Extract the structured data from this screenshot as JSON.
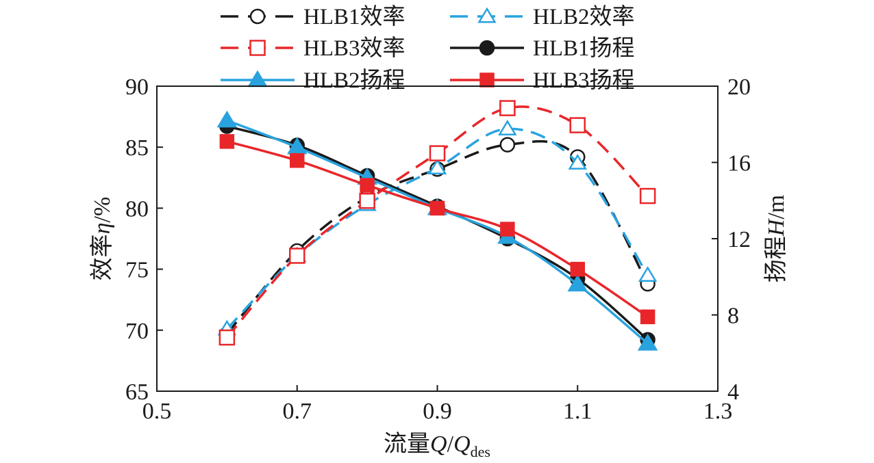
{
  "chart_data": {
    "type": "line",
    "x_label": {
      "prefix": "流量",
      "var_num": "Q",
      "slash": "/",
      "var_den": "Q",
      "subscript": "des"
    },
    "y_left_label": {
      "prefix": "效率",
      "var": "η",
      "suffix": "/%"
    },
    "y_right_label": {
      "prefix": "扬程",
      "var": "H",
      "suffix": "/m"
    },
    "xlim": [
      0.5,
      1.3
    ],
    "y_left_lim": [
      65,
      90
    ],
    "y_right_lim": [
      4,
      20
    ],
    "x_ticks": [
      "0.5",
      "0.7",
      "0.9",
      "1.1",
      "1.3"
    ],
    "y_left_ticks": [
      "65",
      "70",
      "75",
      "80",
      "85",
      "90"
    ],
    "y_right_ticks": [
      "4",
      "8",
      "12",
      "16",
      "20"
    ],
    "x": [
      0.6,
      0.7,
      0.8,
      0.9,
      1.0,
      1.1,
      1.2
    ],
    "legend_position": "top",
    "series": [
      {
        "name": "HLB1效率",
        "axis": "left",
        "color": "#1a1a1a",
        "dash": true,
        "marker": "circle-open",
        "values": [
          69.7,
          76.5,
          80.9,
          83.2,
          85.2,
          84.2,
          73.8
        ]
      },
      {
        "name": "HLB2效率",
        "axis": "left",
        "color": "#29a3de",
        "dash": true,
        "marker": "triangle-open",
        "values": [
          70.1,
          76.1,
          80.3,
          83.3,
          86.5,
          83.7,
          74.5
        ]
      },
      {
        "name": "HLB3效率",
        "axis": "left",
        "color": "#e8262a",
        "dash": true,
        "marker": "square-open",
        "values": [
          69.4,
          76.1,
          80.6,
          84.5,
          88.2,
          86.8,
          81.0
        ]
      },
      {
        "name": "HLB1扬程",
        "axis": "right",
        "color": "#1a1a1a",
        "dash": false,
        "marker": "circle-filled",
        "values": [
          17.9,
          16.9,
          15.3,
          13.7,
          12.0,
          9.9,
          6.7
        ]
      },
      {
        "name": "HLB2扬程",
        "axis": "right",
        "color": "#29a3de",
        "dash": false,
        "marker": "triangle-filled",
        "values": [
          18.2,
          16.8,
          15.2,
          13.6,
          12.1,
          9.6,
          6.5
        ]
      },
      {
        "name": "HLB3扬程",
        "axis": "right",
        "color": "#e8262a",
        "dash": false,
        "marker": "square-filled",
        "values": [
          17.1,
          16.1,
          14.8,
          13.6,
          12.5,
          10.4,
          7.9
        ]
      }
    ]
  }
}
